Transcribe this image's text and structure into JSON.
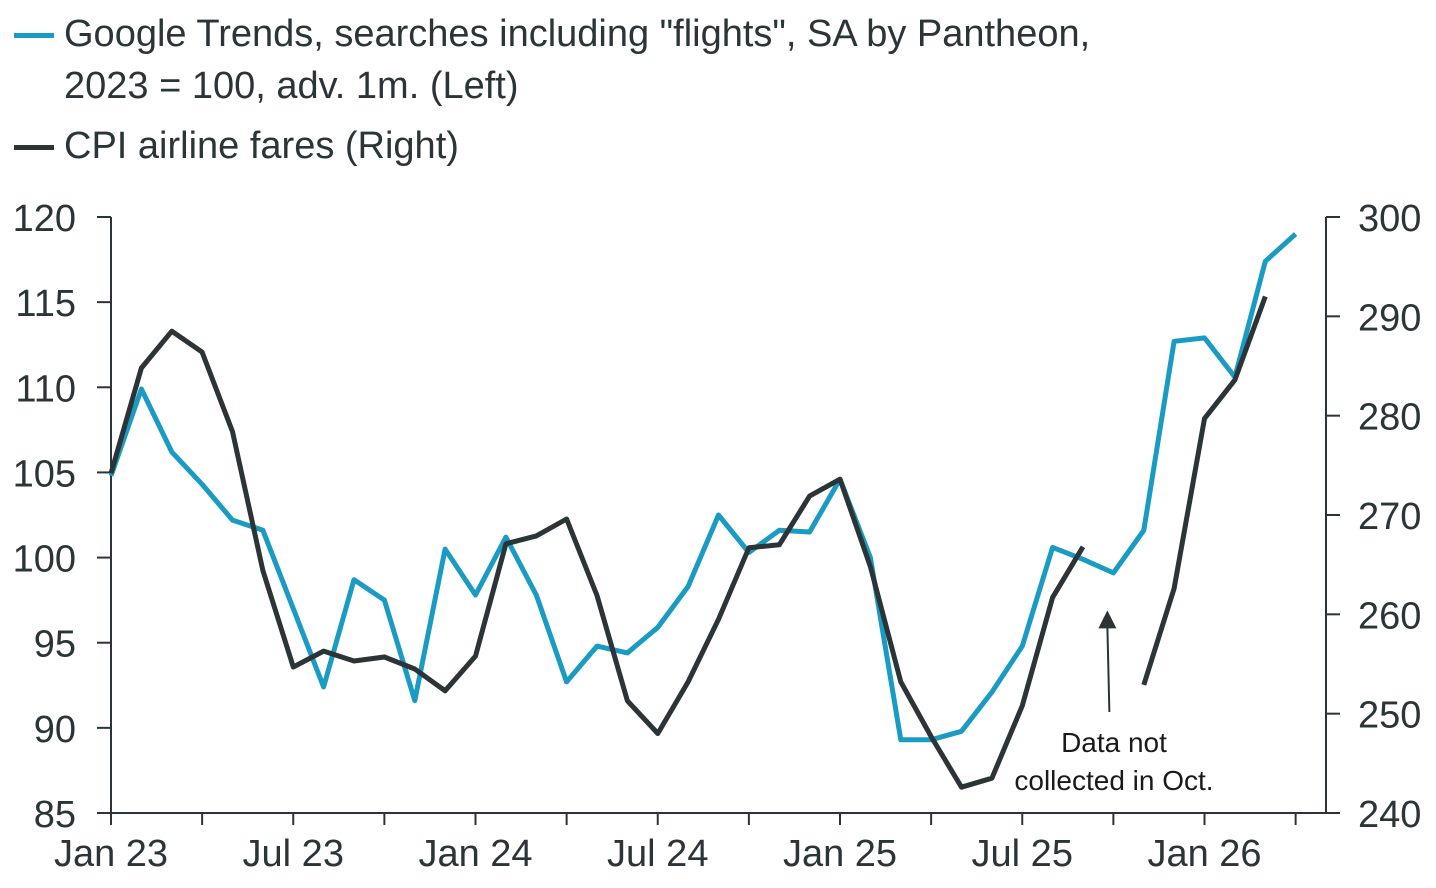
{
  "chart_data": {
    "type": "line",
    "x": [
      "2023-01",
      "2023-02",
      "2023-03",
      "2023-04",
      "2023-05",
      "2023-06",
      "2023-07",
      "2023-08",
      "2023-09",
      "2023-10",
      "2023-11",
      "2023-12",
      "2024-01",
      "2024-02",
      "2024-03",
      "2024-04",
      "2024-05",
      "2024-06",
      "2024-07",
      "2024-08",
      "2024-09",
      "2024-10",
      "2024-11",
      "2024-12",
      "2025-01",
      "2025-02",
      "2025-03",
      "2025-04",
      "2025-05",
      "2025-06",
      "2025-07",
      "2025-08",
      "2025-09",
      "2025-10",
      "2025-11",
      "2025-12",
      "2026-01",
      "2026-02",
      "2026-03",
      "2026-04"
    ],
    "x_tick_labels": [
      {
        "x": "2023-01",
        "label": "Jan 23"
      },
      {
        "x": "2023-07",
        "label": "Jul 23"
      },
      {
        "x": "2024-01",
        "label": "Jan 24"
      },
      {
        "x": "2024-07",
        "label": "Jul 24"
      },
      {
        "x": "2025-01",
        "label": "Jan 25"
      },
      {
        "x": "2025-07",
        "label": "Jul 25"
      },
      {
        "x": "2026-01",
        "label": "Jan 26"
      }
    ],
    "x_minor_ticks": [
      "2023-04",
      "2023-10",
      "2024-04",
      "2024-10",
      "2025-04",
      "2025-10",
      "2026-04"
    ],
    "xlim": [
      "2023-01",
      "2026-05"
    ],
    "series": [
      {
        "name": "Google Trends, searches including \"flights\", SA by Pantheon, 2023 = 100, adv. 1m. (Left)",
        "axis": "left",
        "color": "#1a9bc4",
        "values": [
          104.8,
          109.9,
          106.2,
          104.3,
          102.2,
          101.6,
          97.0,
          92.4,
          98.7,
          97.5,
          91.6,
          100.5,
          97.8,
          101.2,
          97.8,
          92.7,
          94.8,
          94.4,
          95.9,
          98.3,
          102.5,
          100.3,
          101.6,
          101.5,
          104.6,
          100.0,
          89.3,
          89.3,
          89.8,
          92.1,
          94.8,
          100.6,
          99.9,
          99.1,
          101.6,
          112.7,
          112.9,
          110.6,
          117.4,
          119.0
        ]
      },
      {
        "name": "CPI airline fares (Right)",
        "axis": "right",
        "color": "#2b3436",
        "values": [
          274.2,
          284.8,
          288.5,
          286.4,
          278.4,
          264.4,
          254.7,
          256.3,
          255.3,
          255.7,
          254.5,
          252.3,
          255.8,
          267.1,
          267.9,
          269.6,
          261.9,
          251.3,
          248.0,
          253.2,
          259.5,
          266.7,
          267.0,
          271.9,
          273.6,
          264.8,
          253.2,
          247.7,
          242.6,
          243.5,
          250.8,
          261.7,
          266.8,
          null,
          252.9,
          262.6,
          279.7,
          283.6,
          292.0,
          null
        ]
      }
    ],
    "y_left": {
      "ylim": [
        85,
        120
      ],
      "ticks": [
        85,
        90,
        95,
        100,
        105,
        110,
        115,
        120
      ]
    },
    "y_right": {
      "ylim": [
        240,
        300
      ],
      "ticks": [
        240,
        250,
        260,
        270,
        280,
        290,
        300
      ]
    },
    "grid": false,
    "legend_position": "top-left",
    "annotation": {
      "lines": [
        "Data not",
        "collected in Oct."
      ],
      "arrow_target_x": "2025-10",
      "arrow_target_right_value": 260.2
    }
  },
  "legend": {
    "items": [
      {
        "lines": [
          "Google Trends, searches including \"flights\", SA by Pantheon,",
          "2023 = 100, adv. 1m. (Left)"
        ],
        "color": "#1a9bc4"
      },
      {
        "lines": [
          "CPI airline fares (Right)"
        ],
        "color": "#2b3436"
      }
    ]
  },
  "colors": {
    "axis": "#2b3436",
    "text": "#2b3436"
  }
}
